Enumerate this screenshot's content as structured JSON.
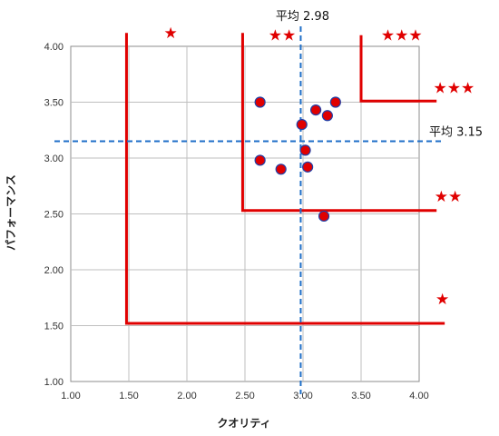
{
  "chart_data": {
    "type": "scatter",
    "title": "",
    "xlabel": "クオリティ",
    "ylabel": "パフォーマンス",
    "xlim": [
      1.0,
      4.0
    ],
    "ylim": [
      1.0,
      4.0
    ],
    "xticks": [
      "1.00",
      "1.50",
      "2.00",
      "2.50",
      "3.00",
      "3.50",
      "4.00"
    ],
    "yticks": [
      "1.00",
      "1.50",
      "2.00",
      "2.50",
      "3.00",
      "3.50",
      "4.00"
    ],
    "grid": true,
    "points": [
      {
        "x": 2.63,
        "y": 3.5
      },
      {
        "x": 2.99,
        "y": 3.3
      },
      {
        "x": 3.11,
        "y": 3.43
      },
      {
        "x": 3.21,
        "y": 3.38
      },
      {
        "x": 3.28,
        "y": 3.5
      },
      {
        "x": 3.02,
        "y": 3.07
      },
      {
        "x": 2.63,
        "y": 2.98
      },
      {
        "x": 2.81,
        "y": 2.9
      },
      {
        "x": 3.04,
        "y": 2.92
      },
      {
        "x": 3.18,
        "y": 2.48
      }
    ],
    "averages": {
      "x": {
        "value": 2.98,
        "label": "平均 2.98"
      },
      "y": {
        "value": 3.15,
        "label": "平均 3.15"
      }
    },
    "zones": [
      {
        "x": 1.48,
        "y": 1.52,
        "x_end": 4.22,
        "y_top": 4.12
      },
      {
        "x": 2.48,
        "y": 2.53,
        "x_end": 4.15,
        "y_top": 4.12
      },
      {
        "x": 3.5,
        "y": 3.51,
        "x_end": 4.15,
        "y_top": 4.1
      }
    ],
    "star_labels": [
      {
        "text": "★",
        "x": 1.86,
        "y": 4.12
      },
      {
        "text": "★★",
        "x": 2.82,
        "y": 4.1
      },
      {
        "text": "★★★",
        "x": 3.85,
        "y": 4.1
      },
      {
        "text": "★★★",
        "x": 4.3,
        "y": 3.63
      },
      {
        "text": "★★",
        "x": 4.25,
        "y": 2.66
      },
      {
        "text": "★",
        "x": 4.2,
        "y": 1.74
      }
    ],
    "colors": {
      "points": "#e00000",
      "point_stroke": "#1f3fa8",
      "zones": "#e00000",
      "average": "#1f6fc8",
      "grid": "#bfbfbf"
    }
  }
}
